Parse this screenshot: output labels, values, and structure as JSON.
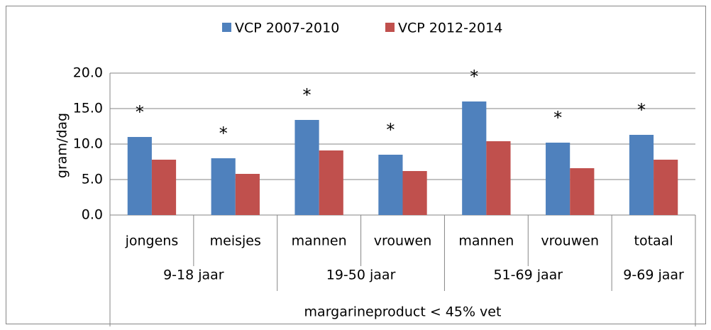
{
  "chart_data": {
    "type": "bar",
    "ylabel": "gram/dag",
    "categories": [
      "jongens",
      "meisjes",
      "mannen",
      "vrouwen",
      "mannen",
      "vrouwen",
      "totaal"
    ],
    "category_groups": [
      "9-18 jaar",
      null,
      "19-50 jaar",
      null,
      "51-69 jaar",
      null,
      "9-69 jaar"
    ],
    "category_supergroup": "margarineproduct < 45% vet",
    "series": [
      {
        "name": "VCP 2007-2010",
        "color": "#4f81bd",
        "values": [
          11.0,
          8.0,
          13.4,
          8.5,
          16.0,
          10.2,
          11.3
        ]
      },
      {
        "name": "VCP 2012-2014",
        "color": "#c0504d",
        "values": [
          7.8,
          5.8,
          9.1,
          6.2,
          10.4,
          6.6,
          7.8
        ]
      }
    ],
    "annotations": [
      "*",
      "*",
      "*",
      "*",
      "*",
      "*",
      "*"
    ],
    "ylim": [
      0,
      20
    ],
    "yticks": [
      {
        "value": 0,
        "label": "0.0"
      },
      {
        "value": 5,
        "label": "5.0"
      },
      {
        "value": 10,
        "label": "10.0"
      },
      {
        "value": 15,
        "label": "15.0"
      },
      {
        "value": 20,
        "label": "20.0"
      }
    ],
    "grid": true,
    "legend": "top"
  }
}
